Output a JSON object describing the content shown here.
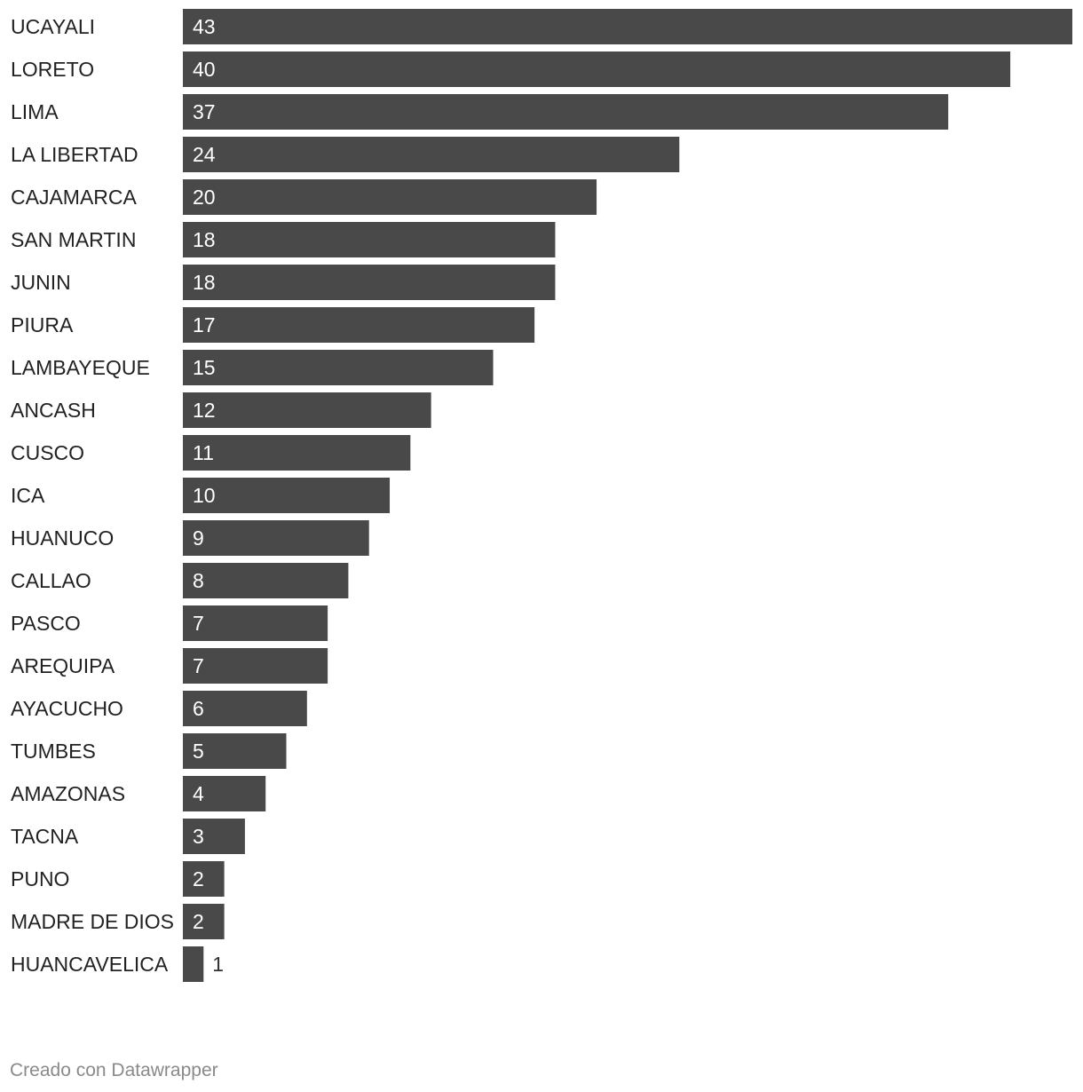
{
  "chart_data": {
    "type": "bar",
    "orientation": "horizontal",
    "categories": [
      "UCAYALI",
      "LORETO",
      "LIMA",
      "LA LIBERTAD",
      "CAJAMARCA",
      "SAN MARTIN",
      "JUNIN",
      "PIURA",
      "LAMBAYEQUE",
      "ANCASH",
      "CUSCO",
      "ICA",
      "HUANUCO",
      "CALLAO",
      "PASCO",
      "AREQUIPA",
      "AYACUCHO",
      "TUMBES",
      "AMAZONAS",
      "TACNA",
      "PUNO",
      "MADRE DE DIOS",
      "HUANCAVELICA"
    ],
    "values": [
      43,
      40,
      37,
      24,
      20,
      18,
      18,
      17,
      15,
      12,
      11,
      10,
      9,
      8,
      7,
      7,
      6,
      5,
      4,
      3,
      2,
      2,
      1
    ],
    "xlim": [
      0,
      43
    ],
    "title": "",
    "xlabel": "",
    "ylabel": "",
    "grid": false,
    "legend": "none",
    "colors": {
      "bar": "#494949",
      "label_inside": "#ffffff",
      "label_outside": "#333333",
      "category": "#222222"
    }
  },
  "footer": {
    "credit": "Creado con Datawrapper"
  }
}
